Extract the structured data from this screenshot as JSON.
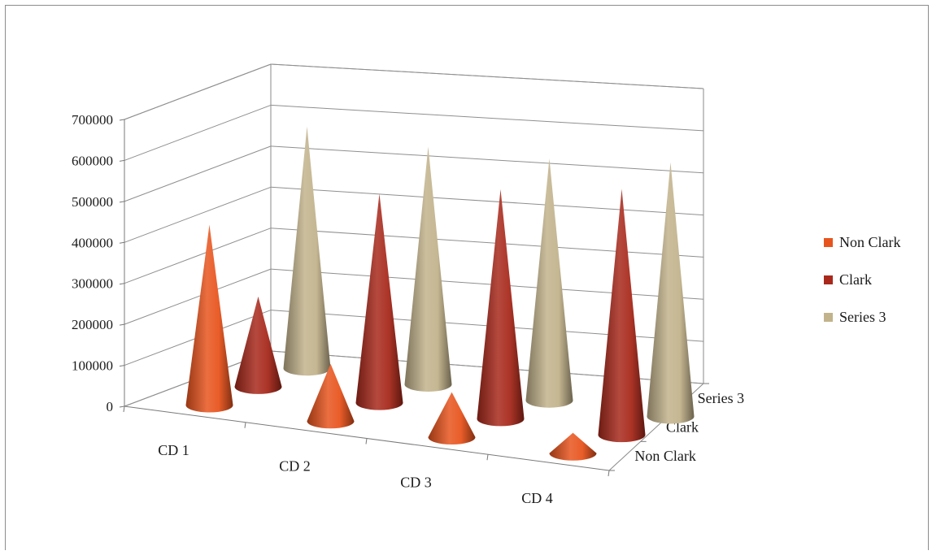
{
  "chart_data": {
    "type": "bar",
    "subtype": "3d-cone",
    "title": "",
    "xlabel": "",
    "ylabel": "",
    "categories": [
      "CD 1",
      "CD 2",
      "CD 3",
      "CD 4"
    ],
    "depth_labels": [
      "Non Clark",
      "Clark",
      "Series 3"
    ],
    "y_ticks": [
      "0",
      "100000",
      "200000",
      "300000",
      "400000",
      "500000",
      "600000",
      "700000"
    ],
    "ylim": [
      0,
      700000
    ],
    "grid": true,
    "legend_position": "right",
    "series": [
      {
        "name": "Non Clark",
        "color": "#e8541e",
        "values": [
          440000,
          140000,
          110000,
          50000
        ]
      },
      {
        "name": "Clark",
        "color": "#a8291c",
        "values": [
          220000,
          510000,
          560000,
          600000
        ]
      },
      {
        "name": "Series 3",
        "color": "#c2b38c",
        "values": [
          590000,
          580000,
          590000,
          620000
        ]
      }
    ]
  }
}
